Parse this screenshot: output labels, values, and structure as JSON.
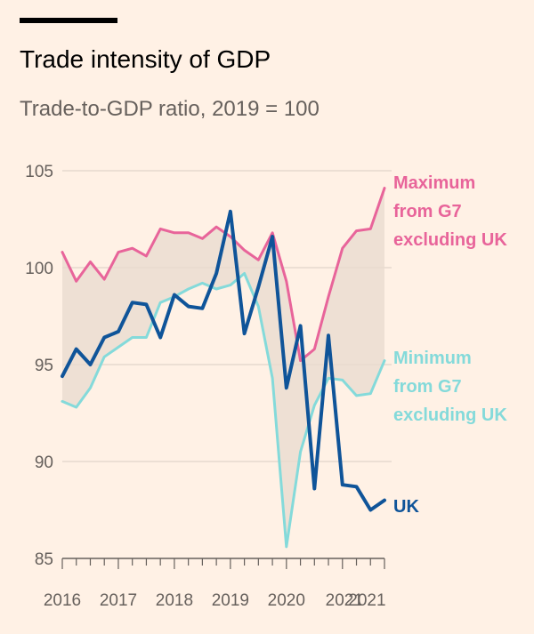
{
  "chart_data": {
    "type": "line",
    "title": "Trade intensity of GDP",
    "subtitle": "Trade-to-GDP ratio, 2019 = 100",
    "xlabel": "",
    "ylabel": "",
    "ylim": [
      85,
      105
    ],
    "y_ticks": [
      85,
      90,
      95,
      100,
      105
    ],
    "x_tick_labels": [
      "2016",
      "2017",
      "2018",
      "2019",
      "2020",
      "2021",
      "2021"
    ],
    "x_tick_quarters": [
      0,
      4,
      8,
      12,
      16,
      20,
      21.5
    ],
    "quarters_count": 24,
    "grid": true,
    "shaded_band": {
      "between": [
        "Maximum from G7 excluding UK",
        "Minimum from G7 excluding UK"
      ],
      "color": "#E8D9CE"
    },
    "series": [
      {
        "name": "Maximum from G7 excluding UK",
        "label_lines": [
          "Maximum",
          "from G7",
          "excluding UK"
        ],
        "color": "#E8649A",
        "values": [
          100.8,
          99.3,
          100.3,
          99.4,
          100.8,
          101.0,
          100.6,
          102.0,
          101.8,
          101.8,
          101.5,
          102.1,
          101.6,
          100.9,
          100.4,
          101.8,
          99.3,
          95.2,
          95.8,
          98.5,
          101.0,
          101.9,
          102.0,
          104.1
        ]
      },
      {
        "name": "Minimum from G7 excluding UK",
        "label_lines": [
          "Minimum",
          "from G7",
          "excluding UK"
        ],
        "color": "#84DADA",
        "values": [
          93.1,
          92.8,
          93.8,
          95.4,
          95.9,
          96.4,
          96.4,
          98.2,
          98.5,
          98.9,
          99.2,
          98.9,
          99.1,
          99.7,
          98.0,
          94.3,
          85.6,
          90.5,
          92.9,
          94.3,
          94.2,
          93.4,
          93.5,
          95.2
        ]
      },
      {
        "name": "UK",
        "label_lines": [
          "UK"
        ],
        "color": "#0F5499",
        "values": [
          94.4,
          95.8,
          95.0,
          96.4,
          96.7,
          98.2,
          98.1,
          96.4,
          98.6,
          98.0,
          97.9,
          99.7,
          102.9,
          96.6,
          99.0,
          101.6,
          93.8,
          97.0,
          88.6,
          96.5,
          88.8,
          88.7,
          87.5,
          88.0
        ]
      }
    ]
  }
}
